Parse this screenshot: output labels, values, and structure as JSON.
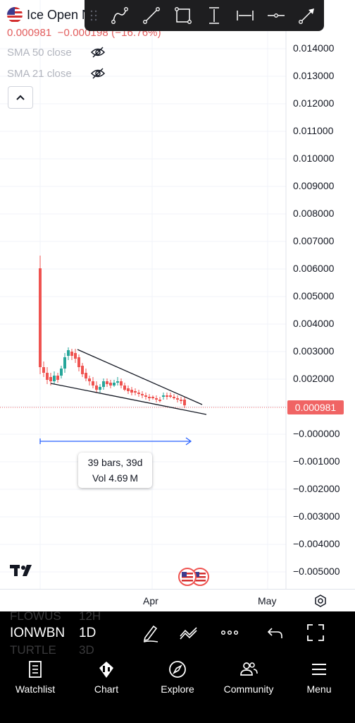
{
  "symbol": {
    "name": "Ice Open N"
  },
  "price": {
    "last": "0.000981",
    "change": "−0.000198 (−16.76%)"
  },
  "indicators": [
    {
      "label": "SMA 50 close"
    },
    {
      "label": "SMA 21 close"
    }
  ],
  "drawing_tools": [
    "curve-tool",
    "trend-line-tool",
    "rectangle-tool",
    "price-range-tool",
    "date-range-tool",
    "horizontal-ray-tool",
    "arrow-tool"
  ],
  "price_axis": [
    "0.014000",
    "0.013000",
    "0.012000",
    "0.011000",
    "0.010000",
    "0.009000",
    "0.008000",
    "0.007000",
    "0.006000",
    "0.005000",
    "0.004000",
    "0.003000",
    "0.002000",
    "−0.000000",
    "−0.001000",
    "−0.002000",
    "−0.003000",
    "−0.004000",
    "−0.005000"
  ],
  "measure": {
    "bars": "39 bars, 39d",
    "volume": "Vol 4.69 M"
  },
  "time_axis": {
    "labels": [
      "Apr",
      "May"
    ]
  },
  "timeframe_bar": {
    "symbols_above": [
      "FLOWUS",
      "12H"
    ],
    "current_symbol": "IONWBN",
    "current_interval": "1D",
    "symbols_below": [
      "TURTLE",
      "3D"
    ]
  },
  "nav": [
    {
      "label": "Watchlist",
      "icon": "watchlist-icon"
    },
    {
      "label": "Chart",
      "icon": "chart-icon"
    },
    {
      "label": "Explore",
      "icon": "compass-icon"
    },
    {
      "label": "Community",
      "icon": "community-icon"
    },
    {
      "label": "Menu",
      "icon": "menu-icon"
    }
  ],
  "colors": {
    "down": "#ef5350",
    "up": "#26a69a",
    "accent": "#2962ff",
    "last_price": "#f06464"
  }
}
